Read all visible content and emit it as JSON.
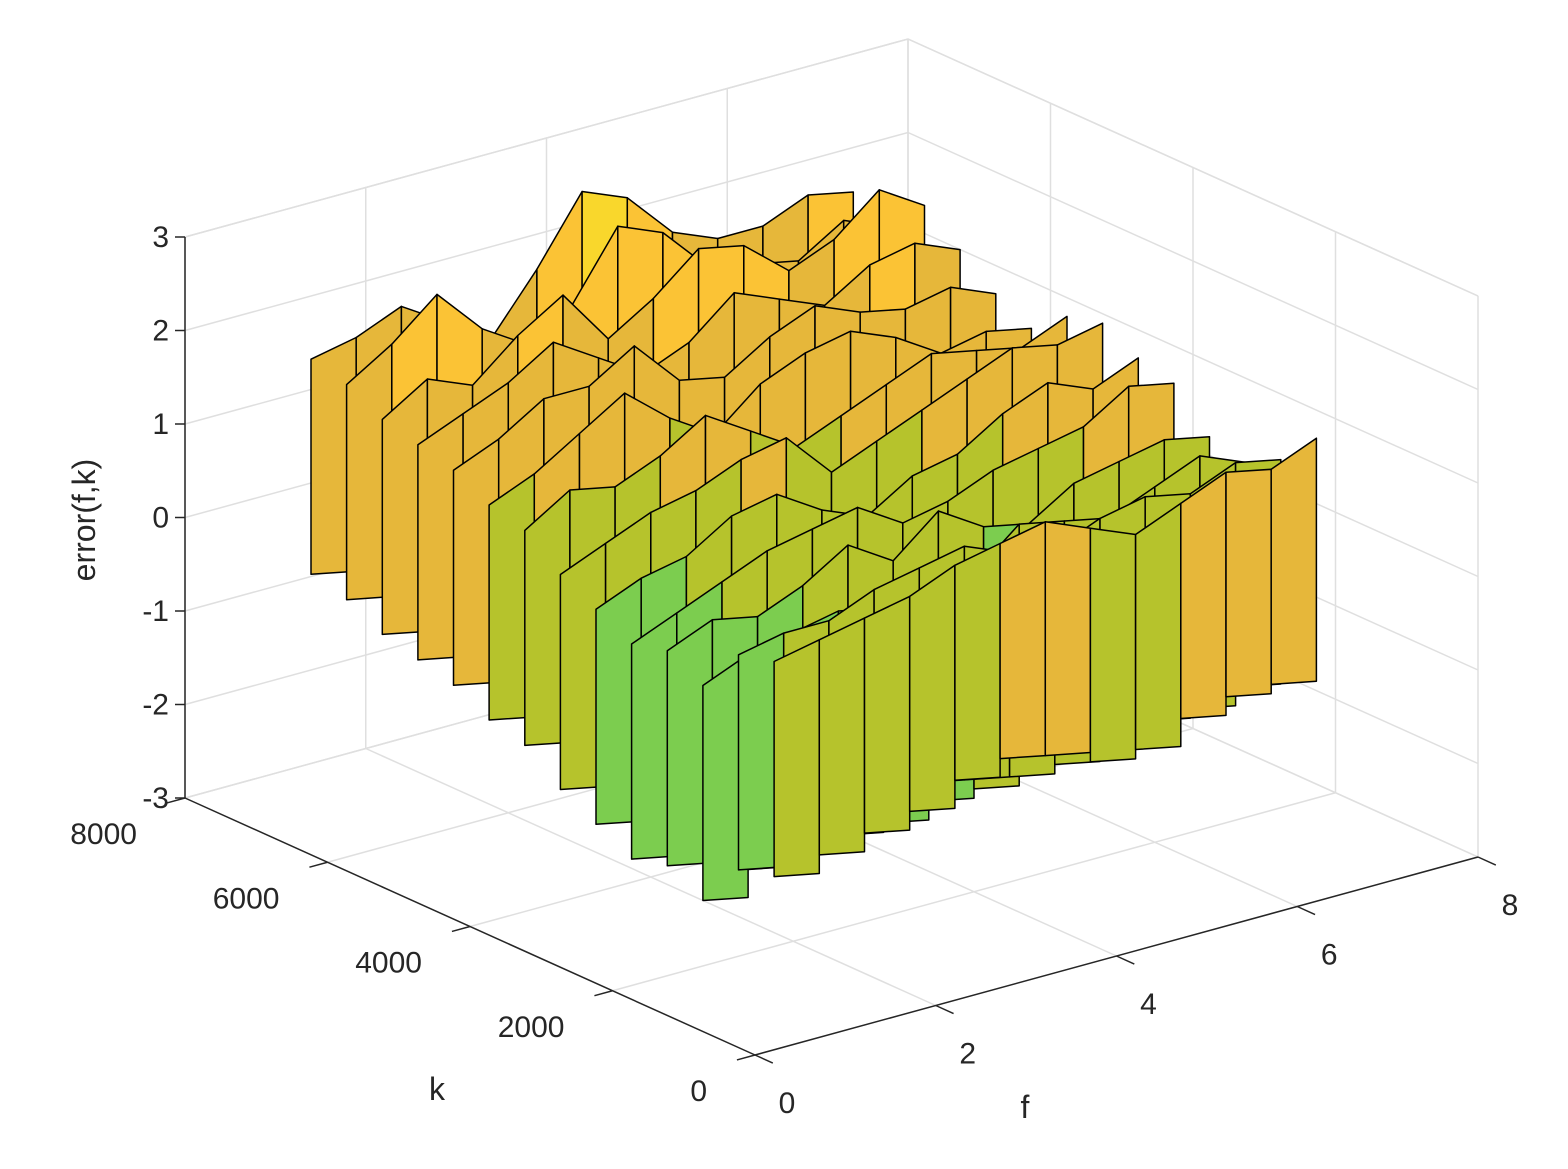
{
  "chart_data": {
    "type": "surface3d",
    "title": "",
    "xlabel": "f",
    "ylabel": "k",
    "zlabel": "error(f,k)",
    "xlim": [
      0,
      8
    ],
    "ylim": [
      0,
      8000
    ],
    "zlim": [
      -3,
      3
    ],
    "x_ticks": [
      "0",
      "2",
      "4",
      "6",
      "8"
    ],
    "y_ticks": [
      "0",
      "2000",
      "4000",
      "6000",
      "8000"
    ],
    "z_ticks": [
      "-3",
      "-2",
      "-1",
      "0",
      "1",
      "2",
      "3"
    ],
    "grid": true,
    "colormap": [
      "#3e26a8",
      "#2f6ffa",
      "#1fa2e0",
      "#0bbbbb",
      "#2dc58e",
      "#7ccd4f",
      "#b6c32c",
      "#e6b73a",
      "#fbc335",
      "#f9d72c"
    ],
    "x_values": [
      1,
      1.5,
      2,
      2.5,
      3,
      3.5,
      4,
      4.5,
      5,
      5.5,
      6,
      6.5,
      7
    ],
    "rows": [
      {
        "k": 7500,
        "z": [
          1.6,
          1.7,
          1.9,
          1.6,
          1.3,
          1.9,
          2.6,
          2.4,
          1.9,
          1.7,
          1.7,
          1.9,
          1.8
        ]
      },
      {
        "k": 7000,
        "z": [
          1.5,
          1.8,
          2.2,
          1.7,
          1.4,
          1.7,
          2.4,
          2.2,
          1.7,
          1.6,
          1.5,
          1.8,
          1.6
        ]
      },
      {
        "k": 6500,
        "z": [
          1.3,
          1.6,
          1.4,
          1.8,
          2.1,
          1.5,
          1.8,
          2.2,
          2.1,
          1.7,
          1.9,
          2.3,
          2.0
        ]
      },
      {
        "k": 6000,
        "z": [
          1.2,
          1.4,
          1.6,
          1.9,
          1.6,
          1.3,
          1.5,
          1.9,
          1.7,
          1.5,
          1.8,
          1.9,
          1.7
        ]
      },
      {
        "k": 5500,
        "z": [
          1.1,
          1.3,
          1.6,
          1.6,
          1.9,
          1.4,
          1.3,
          1.6,
          1.8,
          1.6,
          1.5,
          1.6,
          1.4
        ]
      },
      {
        "k": 5000,
        "z": [
          0.9,
          1.1,
          1.4,
          1.7,
          1.3,
          1.0,
          1.4,
          1.6,
          1.7,
          1.5,
          1.2,
          1.3,
          1.2
        ]
      },
      {
        "k": 4500,
        "z": [
          0.8,
          1.1,
          1.0,
          1.2,
          1.5,
          1.2,
          0.9,
          1.1,
          1.3,
          1.5,
          1.4,
          1.3,
          1.5
        ]
      },
      {
        "k": 4000,
        "z": [
          0.5,
          0.7,
          0.9,
          1.0,
          1.2,
          1.3,
          0.8,
          1.0,
          1.2,
          1.4,
          1.6,
          1.5,
          1.6
        ]
      },
      {
        "k": 3500,
        "z": [
          0.3,
          0.5,
          0.6,
          0.9,
          1.0,
          0.7,
          0.5,
          0.8,
          0.9,
          1.2,
          1.4,
          1.2,
          1.4
        ]
      },
      {
        "k": 3000,
        "z": [
          0.1,
          0.3,
          0.5,
          0.7,
          0.8,
          0.9,
          0.6,
          0.7,
          0.9,
          1.0,
          1.1,
          1.4,
          1.3
        ]
      },
      {
        "k": 2500,
        "z": [
          0.2,
          0.4,
          0.3,
          0.5,
          0.8,
          0.5,
          0.9,
          0.6,
          0.5,
          0.8,
          0.9,
          1.0,
          0.9
        ]
      },
      {
        "k": 2000,
        "z": [
          0.0,
          0.2,
          0.3,
          0.4,
          0.3,
          0.5,
          0.4,
          0.8,
          0.7,
          0.6,
          0.8,
          1.0,
          0.8
        ]
      },
      {
        "k": 1500,
        "z": [
          0.5,
          0.6,
          0.6,
          0.8,
          0.9,
          1.0,
          0.8,
          0.7,
          0.9,
          1.0,
          0.9,
          1.1,
          1.0
        ]
      },
      {
        "k": 1000,
        "z": [
          0.6,
          0.7,
          0.8,
          0.9,
          1.1,
          1.2,
          1.3,
          1.1,
          0.9,
          1.1,
          1.3,
          1.2,
          1.4
        ]
      }
    ]
  }
}
